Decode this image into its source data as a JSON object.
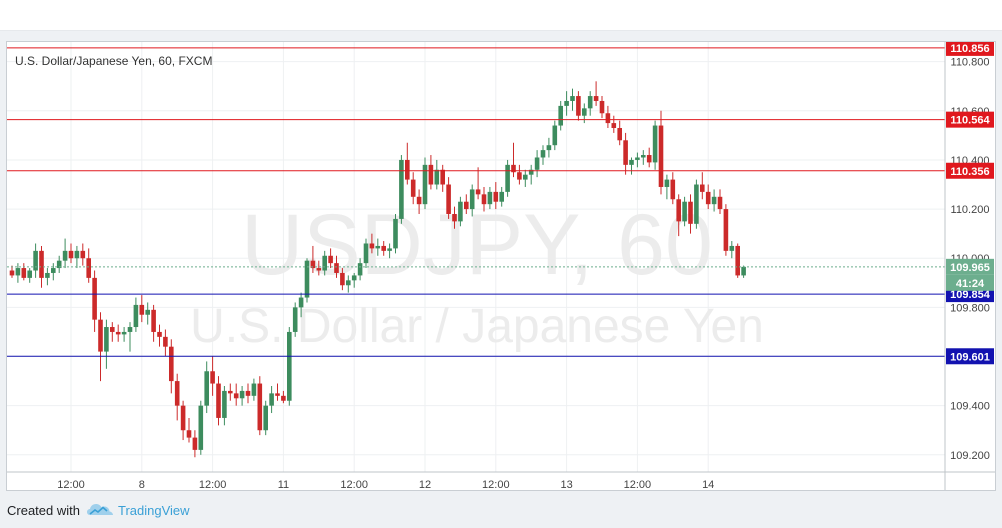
{
  "footer": {
    "created_with": "Created with",
    "brand": "TradingView"
  },
  "chart_data": {
    "type": "candlestick",
    "title": "U.S. Dollar/Japanese Yen, 60, FXCM",
    "watermark": {
      "symbol": "USDJPY, 60",
      "name": "U.S. Dollar / Japanese Yen"
    },
    "ylim": [
      109.13,
      110.88
    ],
    "y_ticks": [
      "110.800",
      "110.600",
      "110.400",
      "110.200",
      "110.000",
      "109.800",
      "109.600",
      "109.400",
      "109.200"
    ],
    "x_ticks": [
      {
        "label": "12:00",
        "index": 10
      },
      {
        "label": "8",
        "index": 22
      },
      {
        "label": "12:00",
        "index": 34
      },
      {
        "label": "11",
        "index": 46
      },
      {
        "label": "12:00",
        "index": 58
      },
      {
        "label": "12",
        "index": 70
      },
      {
        "label": "12:00",
        "index": 82
      },
      {
        "label": "13",
        "index": 94
      },
      {
        "label": "12:00",
        "index": 106
      },
      {
        "label": "14",
        "index": 118
      }
    ],
    "levels": [
      {
        "label": "110.856",
        "value": 110.856,
        "color": "#e0181e"
      },
      {
        "label": "110.564",
        "value": 110.564,
        "color": "#e0181e"
      },
      {
        "label": "110.356",
        "value": 110.356,
        "color": "#e0181e"
      },
      {
        "label": "109.854",
        "value": 109.854,
        "color": "#1212b0"
      },
      {
        "label": "109.601",
        "value": 109.601,
        "color": "#1212b0"
      }
    ],
    "last_price": {
      "label": "109.965",
      "value": 109.965,
      "countdown": "41:24",
      "color": "#6cae8e"
    },
    "colors": {
      "up": "#3d8c5e",
      "down": "#cc2a2a"
    },
    "candles": [
      [
        109.95,
        109.97,
        109.92,
        109.93
      ],
      [
        109.93,
        109.98,
        109.9,
        109.96
      ],
      [
        109.96,
        109.98,
        109.91,
        109.92
      ],
      [
        109.92,
        109.96,
        109.9,
        109.95
      ],
      [
        109.95,
        110.06,
        109.92,
        110.03
      ],
      [
        110.03,
        110.05,
        109.88,
        109.92
      ],
      [
        109.92,
        109.96,
        109.89,
        109.94
      ],
      [
        109.94,
        109.98,
        109.91,
        109.96
      ],
      [
        109.96,
        110.01,
        109.94,
        109.99
      ],
      [
        109.99,
        110.08,
        109.96,
        110.03
      ],
      [
        110.03,
        110.06,
        109.98,
        110.0
      ],
      [
        110.0,
        110.05,
        109.96,
        110.03
      ],
      [
        110.03,
        110.06,
        109.97,
        110.0
      ],
      [
        110.0,
        110.04,
        109.9,
        109.92
      ],
      [
        109.92,
        109.95,
        109.7,
        109.75
      ],
      [
        109.75,
        109.78,
        109.5,
        109.62
      ],
      [
        109.62,
        109.75,
        109.55,
        109.72
      ],
      [
        109.72,
        109.74,
        109.66,
        109.7
      ],
      [
        109.7,
        109.73,
        109.66,
        109.69
      ],
      [
        109.69,
        109.72,
        109.66,
        109.7
      ],
      [
        109.7,
        109.74,
        109.62,
        109.72
      ],
      [
        109.72,
        109.84,
        109.7,
        109.81
      ],
      [
        109.81,
        109.85,
        109.74,
        109.77
      ],
      [
        109.77,
        109.82,
        109.73,
        109.79
      ],
      [
        109.79,
        109.81,
        109.66,
        109.7
      ],
      [
        109.7,
        109.73,
        109.64,
        109.68
      ],
      [
        109.68,
        109.71,
        109.6,
        109.64
      ],
      [
        109.64,
        109.67,
        109.45,
        109.5
      ],
      [
        109.5,
        109.53,
        109.34,
        109.4
      ],
      [
        109.4,
        109.42,
        109.26,
        109.3
      ],
      [
        109.3,
        109.35,
        109.25,
        109.27
      ],
      [
        109.27,
        109.3,
        109.19,
        109.22
      ],
      [
        109.22,
        109.42,
        109.2,
        109.4
      ],
      [
        109.4,
        109.58,
        109.37,
        109.54
      ],
      [
        109.54,
        109.6,
        109.44,
        109.49
      ],
      [
        109.49,
        109.52,
        109.32,
        109.35
      ],
      [
        109.35,
        109.48,
        109.32,
        109.46
      ],
      [
        109.46,
        109.49,
        109.42,
        109.45
      ],
      [
        109.45,
        109.49,
        109.4,
        109.43
      ],
      [
        109.43,
        109.48,
        109.4,
        109.46
      ],
      [
        109.46,
        109.49,
        109.41,
        109.44
      ],
      [
        109.44,
        109.51,
        109.42,
        109.49
      ],
      [
        109.49,
        109.52,
        109.28,
        109.3
      ],
      [
        109.3,
        109.42,
        109.28,
        109.4
      ],
      [
        109.4,
        109.48,
        109.37,
        109.45
      ],
      [
        109.45,
        109.49,
        109.42,
        109.44
      ],
      [
        109.44,
        109.46,
        109.41,
        109.42
      ],
      [
        109.42,
        109.72,
        109.4,
        109.7
      ],
      [
        109.7,
        109.82,
        109.68,
        109.8
      ],
      [
        109.8,
        109.86,
        109.76,
        109.84
      ],
      [
        109.84,
        110.0,
        109.82,
        109.99
      ],
      [
        109.99,
        110.05,
        109.94,
        109.96
      ],
      [
        109.96,
        109.99,
        109.93,
        109.95
      ],
      [
        109.95,
        110.03,
        109.93,
        110.01
      ],
      [
        110.01,
        110.04,
        109.96,
        109.98
      ],
      [
        109.98,
        110.01,
        109.92,
        109.94
      ],
      [
        109.94,
        109.96,
        109.87,
        109.89
      ],
      [
        109.89,
        109.93,
        109.86,
        109.91
      ],
      [
        109.91,
        109.94,
        109.88,
        109.93
      ],
      [
        109.93,
        110.0,
        109.91,
        109.98
      ],
      [
        109.98,
        110.08,
        109.96,
        110.06
      ],
      [
        110.06,
        110.1,
        110.02,
        110.04
      ],
      [
        110.04,
        110.08,
        110.01,
        110.05
      ],
      [
        110.05,
        110.07,
        110.01,
        110.03
      ],
      [
        110.03,
        110.06,
        110.0,
        110.04
      ],
      [
        110.04,
        110.18,
        110.02,
        110.16
      ],
      [
        110.16,
        110.42,
        110.14,
        110.4
      ],
      [
        110.4,
        110.47,
        110.3,
        110.32
      ],
      [
        110.32,
        110.35,
        110.22,
        110.25
      ],
      [
        110.25,
        110.28,
        110.18,
        110.22
      ],
      [
        110.22,
        110.41,
        110.2,
        110.38
      ],
      [
        110.38,
        110.42,
        110.28,
        110.3
      ],
      [
        110.3,
        110.4,
        110.28,
        110.36
      ],
      [
        110.36,
        110.38,
        110.27,
        110.3
      ],
      [
        110.3,
        110.33,
        110.16,
        110.18
      ],
      [
        110.18,
        110.21,
        110.12,
        110.15
      ],
      [
        110.15,
        110.25,
        110.13,
        110.23
      ],
      [
        110.23,
        110.26,
        110.18,
        110.2
      ],
      [
        110.2,
        110.3,
        110.17,
        110.28
      ],
      [
        110.28,
        110.37,
        110.24,
        110.26
      ],
      [
        110.26,
        110.29,
        110.19,
        110.22
      ],
      [
        110.22,
        110.29,
        110.2,
        110.27
      ],
      [
        110.27,
        110.31,
        110.2,
        110.23
      ],
      [
        110.23,
        110.29,
        110.21,
        110.27
      ],
      [
        110.27,
        110.4,
        110.25,
        110.38
      ],
      [
        110.38,
        110.47,
        110.33,
        110.35
      ],
      [
        110.35,
        110.38,
        110.3,
        110.32
      ],
      [
        110.32,
        110.36,
        110.29,
        110.34
      ],
      [
        110.34,
        110.38,
        110.3,
        110.36
      ],
      [
        110.36,
        110.44,
        110.33,
        110.41
      ],
      [
        110.41,
        110.46,
        110.38,
        110.44
      ],
      [
        110.44,
        110.49,
        110.41,
        110.46
      ],
      [
        110.46,
        110.56,
        110.44,
        110.54
      ],
      [
        110.54,
        110.64,
        110.52,
        110.62
      ],
      [
        110.62,
        110.68,
        110.58,
        110.64
      ],
      [
        110.64,
        110.69,
        110.6,
        110.66
      ],
      [
        110.66,
        110.68,
        110.56,
        110.58
      ],
      [
        110.58,
        110.63,
        110.55,
        110.61
      ],
      [
        110.61,
        110.68,
        110.58,
        110.66
      ],
      [
        110.66,
        110.72,
        110.62,
        110.64
      ],
      [
        110.64,
        110.66,
        110.57,
        110.59
      ],
      [
        110.59,
        110.62,
        110.53,
        110.55
      ],
      [
        110.55,
        110.58,
        110.51,
        110.53
      ],
      [
        110.53,
        110.56,
        110.46,
        110.48
      ],
      [
        110.48,
        110.51,
        110.34,
        110.38
      ],
      [
        110.38,
        110.41,
        110.34,
        110.4
      ],
      [
        110.4,
        110.43,
        110.37,
        110.41
      ],
      [
        110.41,
        110.44,
        110.38,
        110.42
      ],
      [
        110.42,
        110.45,
        110.37,
        110.39
      ],
      [
        110.39,
        110.56,
        110.36,
        110.54
      ],
      [
        110.54,
        110.6,
        110.26,
        110.29
      ],
      [
        110.29,
        110.34,
        110.24,
        110.32
      ],
      [
        110.32,
        110.35,
        110.22,
        110.24
      ],
      [
        110.24,
        110.26,
        110.09,
        110.15
      ],
      [
        110.15,
        110.25,
        110.13,
        110.23
      ],
      [
        110.23,
        110.26,
        110.1,
        110.14
      ],
      [
        110.14,
        110.32,
        110.12,
        110.3
      ],
      [
        110.3,
        110.35,
        110.24,
        110.27
      ],
      [
        110.27,
        110.3,
        110.2,
        110.22
      ],
      [
        110.22,
        110.28,
        110.19,
        110.25
      ],
      [
        110.25,
        110.28,
        110.18,
        110.2
      ],
      [
        110.2,
        110.22,
        110.01,
        110.03
      ],
      [
        110.03,
        110.07,
        110.0,
        110.05
      ],
      [
        110.05,
        110.06,
        109.92,
        109.93
      ],
      [
        109.93,
        109.97,
        109.92,
        109.965
      ]
    ]
  }
}
